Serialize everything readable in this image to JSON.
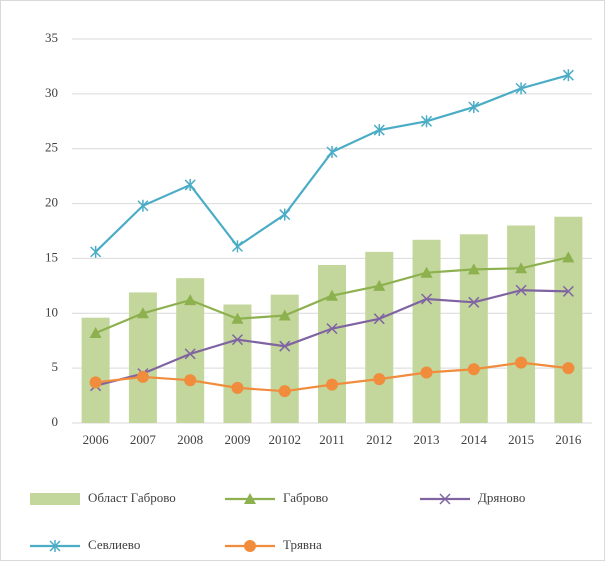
{
  "chart_data": {
    "type": "combo",
    "categories": [
      "2006",
      "2007",
      "2008",
      "2009",
      "20102",
      "2011",
      "2012",
      "2013",
      "2014",
      "2015",
      "2016"
    ],
    "series": [
      {
        "name": "Област Габрово",
        "type": "bar",
        "color": "#c3d69b",
        "values": [
          9.6,
          11.9,
          13.2,
          10.8,
          11.7,
          14.4,
          15.6,
          16.7,
          17.2,
          18.0,
          18.8
        ]
      },
      {
        "name": "Габрово",
        "type": "line",
        "marker": "triangle",
        "color": "#8db14e",
        "values": [
          8.2,
          10.0,
          11.2,
          9.5,
          9.8,
          11.6,
          12.5,
          13.7,
          14.0,
          14.1,
          15.1
        ]
      },
      {
        "name": "Дряново",
        "type": "line",
        "marker": "x",
        "color": "#8064a2",
        "values": [
          3.4,
          4.5,
          6.3,
          7.6,
          7.0,
          8.6,
          9.5,
          11.3,
          11.0,
          12.1,
          12.0
        ]
      },
      {
        "name": "Севлиево",
        "type": "line",
        "marker": "star",
        "color": "#4bacc6",
        "values": [
          15.6,
          19.8,
          21.7,
          16.1,
          19.0,
          24.7,
          26.7,
          27.5,
          28.8,
          30.5,
          31.7
        ]
      },
      {
        "name": "Трявна",
        "type": "line",
        "marker": "circle",
        "color": "#f08c3c",
        "values": [
          3.7,
          4.2,
          3.9,
          3.2,
          2.9,
          3.5,
          4.0,
          4.6,
          4.9,
          5.5,
          5.0
        ]
      }
    ],
    "ylim": [
      0,
      35
    ],
    "yticks": [
      0,
      5,
      10,
      15,
      20,
      25,
      30,
      35
    ],
    "grid": true,
    "legend": "bottom"
  }
}
